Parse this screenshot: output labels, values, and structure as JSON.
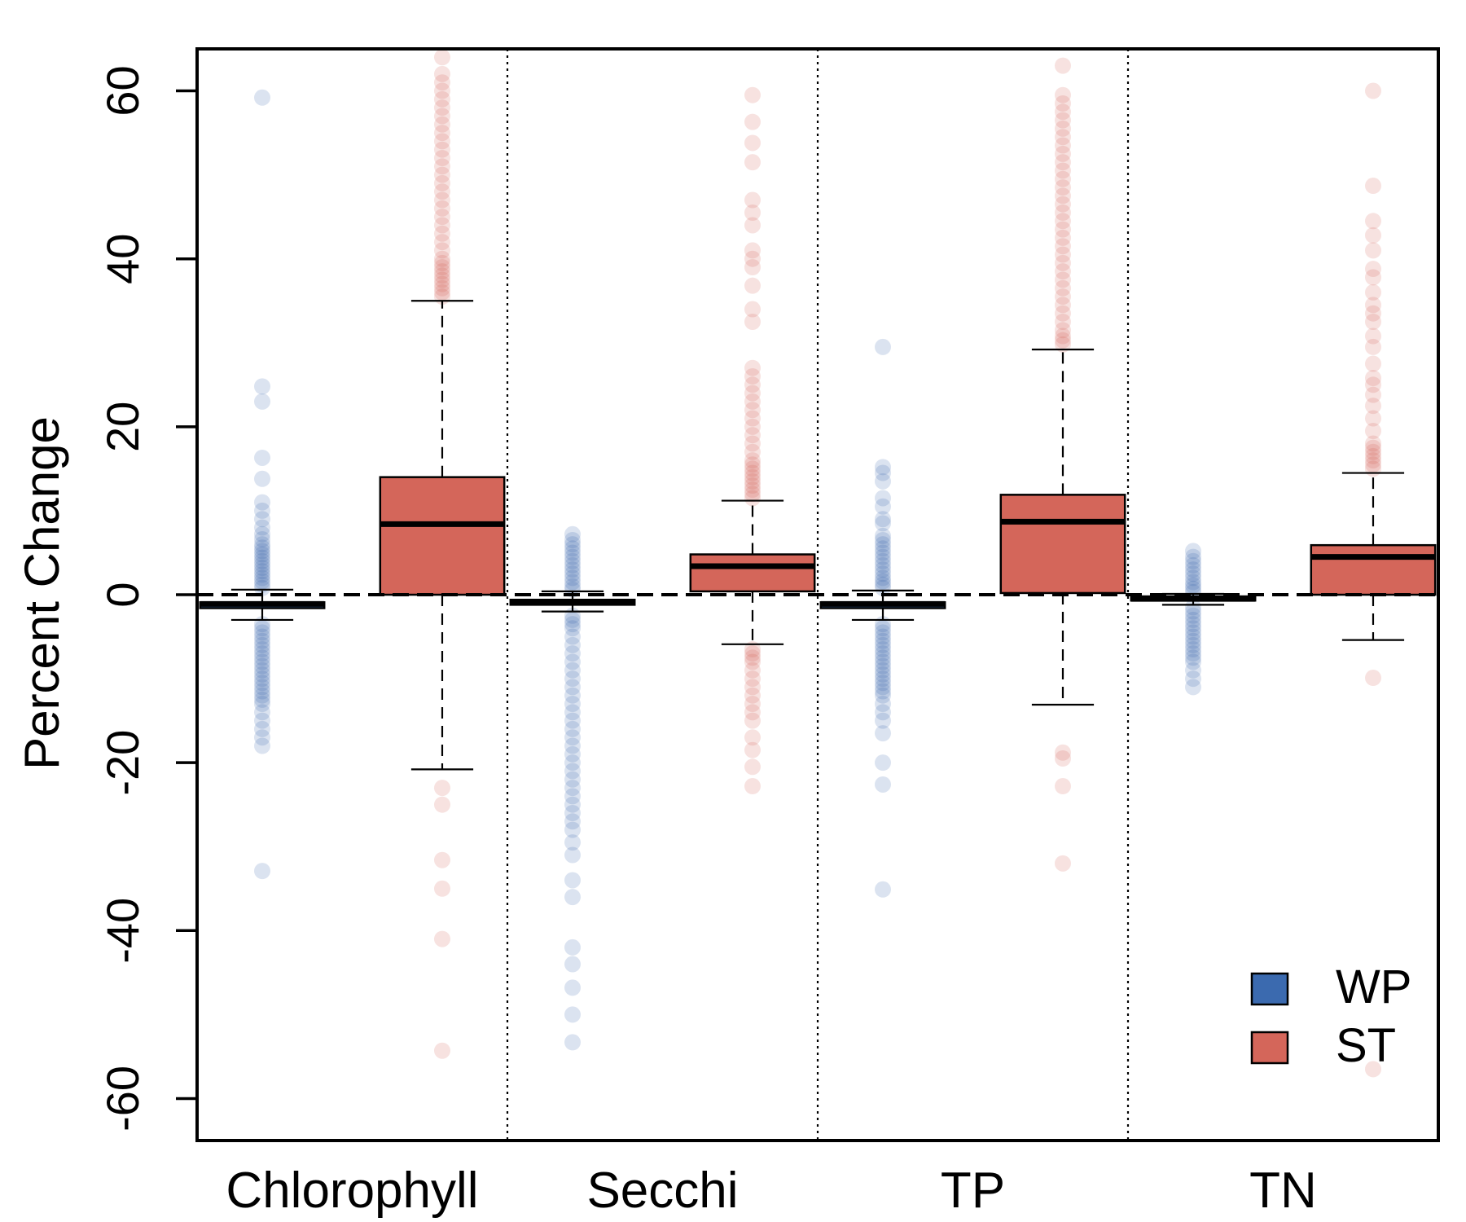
{
  "chart_data": {
    "type": "box",
    "ylabel": "Percent Change",
    "xlabel": "",
    "ylim": [
      -65,
      65
    ],
    "yticks": [
      -60,
      -40,
      -20,
      0,
      20,
      40,
      60
    ],
    "categories": [
      "Chlorophyll",
      "Secchi",
      "TP",
      "TN"
    ],
    "reference_line": 0,
    "legend": {
      "position": "bottom-right",
      "entries": [
        {
          "key": "WP",
          "label": "WP",
          "color": "#3b6aaf"
        },
        {
          "key": "ST",
          "label": "ST",
          "color": "#d4665a"
        }
      ]
    },
    "series": [
      {
        "name": "WP",
        "fill": "#3b6aaf",
        "point_color": "#1f53a3",
        "boxes": [
          {
            "category": "Chlorophyll",
            "q1": -1.6,
            "median": -1.1,
            "q3": -0.9,
            "whisker_low": -3.0,
            "whisker_high": 0.6,
            "outliers_high": [
              0.8,
              1.2,
              1.6,
              2.0,
              2.4,
              2.8,
              3.2,
              3.6,
              4.0,
              4.4,
              4.8,
              5.2,
              5.6,
              6.0,
              6.6,
              7.2,
              8.0,
              9.0,
              10.0,
              11.0,
              13.8,
              16.3,
              23.0,
              24.8,
              59.2
            ],
            "outliers_low": [
              -3.5,
              -4.0,
              -4.5,
              -5.0,
              -5.5,
              -6.0,
              -6.5,
              -7.0,
              -7.5,
              -8.0,
              -8.5,
              -9.0,
              -9.5,
              -10.0,
              -10.5,
              -11.0,
              -11.5,
              -12.0,
              -12.5,
              -13.0,
              -14.0,
              -15.0,
              -16.0,
              -17.0,
              -18.0,
              -32.9
            ]
          },
          {
            "category": "Secchi",
            "q1": -1.2,
            "median": -0.9,
            "q3": -0.6,
            "whisker_low": -2.0,
            "whisker_high": 0.4,
            "outliers_high": [
              0.6,
              1.0,
              1.5,
              2.0,
              2.5,
              3.0,
              3.5,
              4.0,
              4.5,
              5.0,
              5.5,
              6.0,
              6.5,
              7.2
            ],
            "outliers_low": [
              -2.5,
              -3.0,
              -3.5,
              -4.0,
              -5.0,
              -6.0,
              -7.0,
              -8.0,
              -9.0,
              -10.0,
              -11.0,
              -12.0,
              -13.0,
              -14.0,
              -15.0,
              -16.0,
              -17.0,
              -18.0,
              -19.0,
              -20.0,
              -21.0,
              -22.0,
              -23.0,
              -24.0,
              -25.0,
              -26.0,
              -27.0,
              -28.0,
              -29.5,
              -31.0,
              -34.0,
              -36.0,
              -42.0,
              -44.0,
              -46.8,
              -50.0,
              -53.3
            ]
          },
          {
            "category": "TP",
            "q1": -1.6,
            "median": -1.1,
            "q3": -0.9,
            "whisker_low": -3.0,
            "whisker_high": 0.5,
            "outliers_high": [
              0.8,
              1.2,
              1.6,
              2.0,
              2.5,
              3.0,
              3.5,
              4.0,
              4.5,
              5.0,
              5.5,
              6.0,
              6.5,
              7.0,
              8.5,
              9.0,
              10.5,
              11.5,
              13.5,
              14.5,
              15.2,
              29.5
            ],
            "outliers_low": [
              -3.5,
              -4.0,
              -4.5,
              -5.0,
              -5.5,
              -6.0,
              -6.5,
              -7.0,
              -7.5,
              -8.0,
              -8.5,
              -9.0,
              -9.5,
              -10.0,
              -10.5,
              -11.0,
              -11.5,
              -12.0,
              -13.0,
              -14.0,
              -15.0,
              -16.5,
              -20.0,
              -22.6,
              -35.1
            ]
          },
          {
            "category": "TN",
            "q1": -0.7,
            "median": -0.5,
            "q3": -0.2,
            "whisker_low": -1.2,
            "whisker_high": 0.1,
            "outliers_high": [
              0.3,
              0.7,
              1.1,
              1.5,
              2.0,
              2.5,
              3.0,
              3.5,
              4.0,
              4.5,
              5.2
            ],
            "outliers_low": [
              -1.5,
              -2.0,
              -2.5,
              -3.0,
              -3.5,
              -4.0,
              -4.5,
              -5.0,
              -5.5,
              -6.0,
              -6.5,
              -7.0,
              -7.5,
              -8.0,
              -9.0,
              -10.0,
              -11.0
            ]
          }
        ]
      },
      {
        "name": "ST",
        "fill": "#d4665a",
        "point_color": "#d04a3c",
        "boxes": [
          {
            "category": "Chlorophyll",
            "q1": 0.0,
            "median": 8.4,
            "q3": 14.0,
            "whisker_low": -20.8,
            "whisker_high": 35.0,
            "outliers_high": [
              35.5,
              36.0,
              36.5,
              37.0,
              37.5,
              38.0,
              38.5,
              39.0,
              39.5,
              40.0,
              41.0,
              42.0,
              43.0,
              44.0,
              45.0,
              46.0,
              47.0,
              48.0,
              49.0,
              50.0,
              51.0,
              52.0,
              53.0,
              54.0,
              55.0,
              56.0,
              57.0,
              58.0,
              59.0,
              60.0,
              61.0,
              62.0,
              64.0
            ],
            "outliers_low": [
              -23.0,
              -25.0,
              -31.6,
              -35.0,
              -41.0,
              -54.3
            ]
          },
          {
            "category": "Secchi",
            "q1": 0.4,
            "median": 3.4,
            "q3": 4.8,
            "whisker_low": -5.9,
            "whisker_high": 11.2,
            "outliers_high": [
              11.5,
              12.0,
              12.5,
              13.0,
              13.5,
              14.0,
              14.5,
              15.0,
              15.5,
              16.0,
              17.0,
              18.0,
              19.0,
              20.0,
              21.0,
              22.0,
              23.0,
              24.0,
              25.0,
              26.0,
              27.0,
              32.5,
              34.0,
              36.8,
              39.0,
              40.0,
              41.0,
              44.0,
              45.5,
              47.0,
              51.5,
              53.8,
              56.3,
              59.5
            ],
            "outliers_low": [
              -6.5,
              -7.0,
              -7.5,
              -8.0,
              -9.0,
              -10.0,
              -11.0,
              -12.0,
              -13.0,
              -14.0,
              -15.0,
              -17.0,
              -18.5,
              -20.5,
              -22.8
            ]
          },
          {
            "category": "TP",
            "q1": 0.2,
            "median": 8.7,
            "q3": 11.9,
            "whisker_low": -13.1,
            "whisker_high": 29.2,
            "outliers_high": [
              29.8,
              30.3,
              30.8,
              31.5,
              32.5,
              33.5,
              34.5,
              35.5,
              36.5,
              37.5,
              38.5,
              39.5,
              40.5,
              41.5,
              42.5,
              43.5,
              44.5,
              45.5,
              46.5,
              47.5,
              48.5,
              49.5,
              50.5,
              51.5,
              52.5,
              53.5,
              54.5,
              55.5,
              56.5,
              57.5,
              58.5,
              59.5,
              63.0
            ],
            "outliers_low": [
              -18.8,
              -19.5,
              -22.8,
              -32.0
            ]
          },
          {
            "category": "TN",
            "q1": 0.0,
            "median": 4.5,
            "q3": 5.9,
            "whisker_low": -5.4,
            "whisker_high": 14.5,
            "outliers_high": [
              15.0,
              15.5,
              16.0,
              16.5,
              17.0,
              17.5,
              18.0,
              19.5,
              21.0,
              22.5,
              23.8,
              25.0,
              25.8,
              27.5,
              29.5,
              30.8,
              32.5,
              33.5,
              34.5,
              36.0,
              37.8,
              38.8,
              41.0,
              42.8,
              44.5,
              48.7,
              60.0
            ],
            "outliers_low": [
              -9.9,
              -56.5
            ]
          }
        ]
      }
    ]
  }
}
